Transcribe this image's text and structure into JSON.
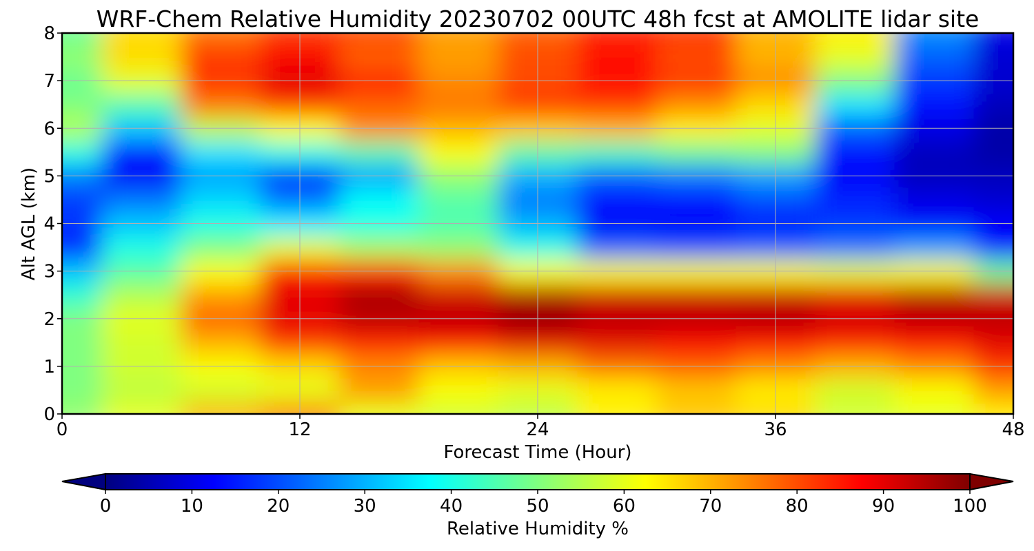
{
  "chart_data": {
    "type": "heatmap",
    "title": "WRF-Chem Relative Humidity 20230702 00UTC 48h fcst at AMOLITE lidar site",
    "xlabel": "Forecast Time (Hour)",
    "ylabel": "Alt AGL (km)",
    "xlim": [
      0,
      48
    ],
    "ylim": [
      0,
      8
    ],
    "xticks": [
      0,
      12,
      24,
      36,
      48
    ],
    "yticks": [
      0,
      1,
      2,
      3,
      4,
      5,
      6,
      7,
      8
    ],
    "grid": true,
    "colormap": "jet",
    "colorbar": {
      "label": "Relative Humidity %",
      "min": 0,
      "max": 100,
      "ticks": [
        0,
        10,
        20,
        30,
        40,
        50,
        60,
        70,
        80,
        90,
        100
      ],
      "extend": "both",
      "orientation": "horizontal"
    },
    "x": [
      0,
      4,
      8,
      12,
      16,
      20,
      24,
      28,
      32,
      36,
      40,
      44,
      48
    ],
    "y": [
      0,
      0.5,
      1,
      1.5,
      2,
      2.5,
      3,
      3.5,
      4,
      4.5,
      5,
      5.5,
      6,
      6.5,
      7,
      7.5,
      8
    ],
    "z": [
      [
        52,
        60,
        70,
        75,
        60,
        58,
        56,
        64,
        68,
        66,
        58,
        60,
        64
      ],
      [
        50,
        56,
        58,
        60,
        72,
        62,
        60,
        64,
        68,
        64,
        58,
        62,
        72
      ],
      [
        50,
        58,
        62,
        66,
        74,
        68,
        70,
        76,
        78,
        74,
        70,
        74,
        82
      ],
      [
        50,
        58,
        70,
        82,
        84,
        86,
        90,
        90,
        88,
        86,
        84,
        86,
        90
      ],
      [
        50,
        60,
        78,
        90,
        94,
        94,
        98,
        94,
        94,
        95,
        92,
        94,
        94
      ],
      [
        42,
        55,
        72,
        90,
        96,
        92,
        95,
        92,
        92,
        92,
        90,
        94,
        92
      ],
      [
        32,
        46,
        62,
        84,
        84,
        74,
        62,
        62,
        62,
        62,
        60,
        62,
        48
      ],
      [
        15,
        40,
        50,
        60,
        54,
        52,
        40,
        22,
        20,
        22,
        24,
        28,
        14
      ],
      [
        18,
        32,
        40,
        36,
        40,
        45,
        30,
        12,
        12,
        14,
        18,
        14,
        12
      ],
      [
        18,
        24,
        34,
        24,
        38,
        46,
        24,
        14,
        14,
        20,
        16,
        10,
        8
      ],
      [
        25,
        12,
        28,
        16,
        28,
        52,
        30,
        22,
        24,
        28,
        12,
        6,
        6
      ],
      [
        40,
        14,
        35,
        40,
        45,
        62,
        46,
        44,
        48,
        50,
        14,
        6,
        4
      ],
      [
        55,
        32,
        56,
        62,
        74,
        70,
        68,
        70,
        64,
        60,
        22,
        10,
        4
      ],
      [
        50,
        45,
        76,
        82,
        78,
        76,
        82,
        82,
        74,
        66,
        35,
        14,
        6
      ],
      [
        48,
        60,
        82,
        90,
        84,
        74,
        80,
        86,
        82,
        74,
        50,
        18,
        8
      ],
      [
        52,
        66,
        82,
        88,
        78,
        72,
        80,
        86,
        80,
        70,
        60,
        22,
        8
      ],
      [
        48,
        66,
        76,
        82,
        80,
        72,
        78,
        84,
        82,
        70,
        64,
        26,
        10
      ]
    ]
  }
}
